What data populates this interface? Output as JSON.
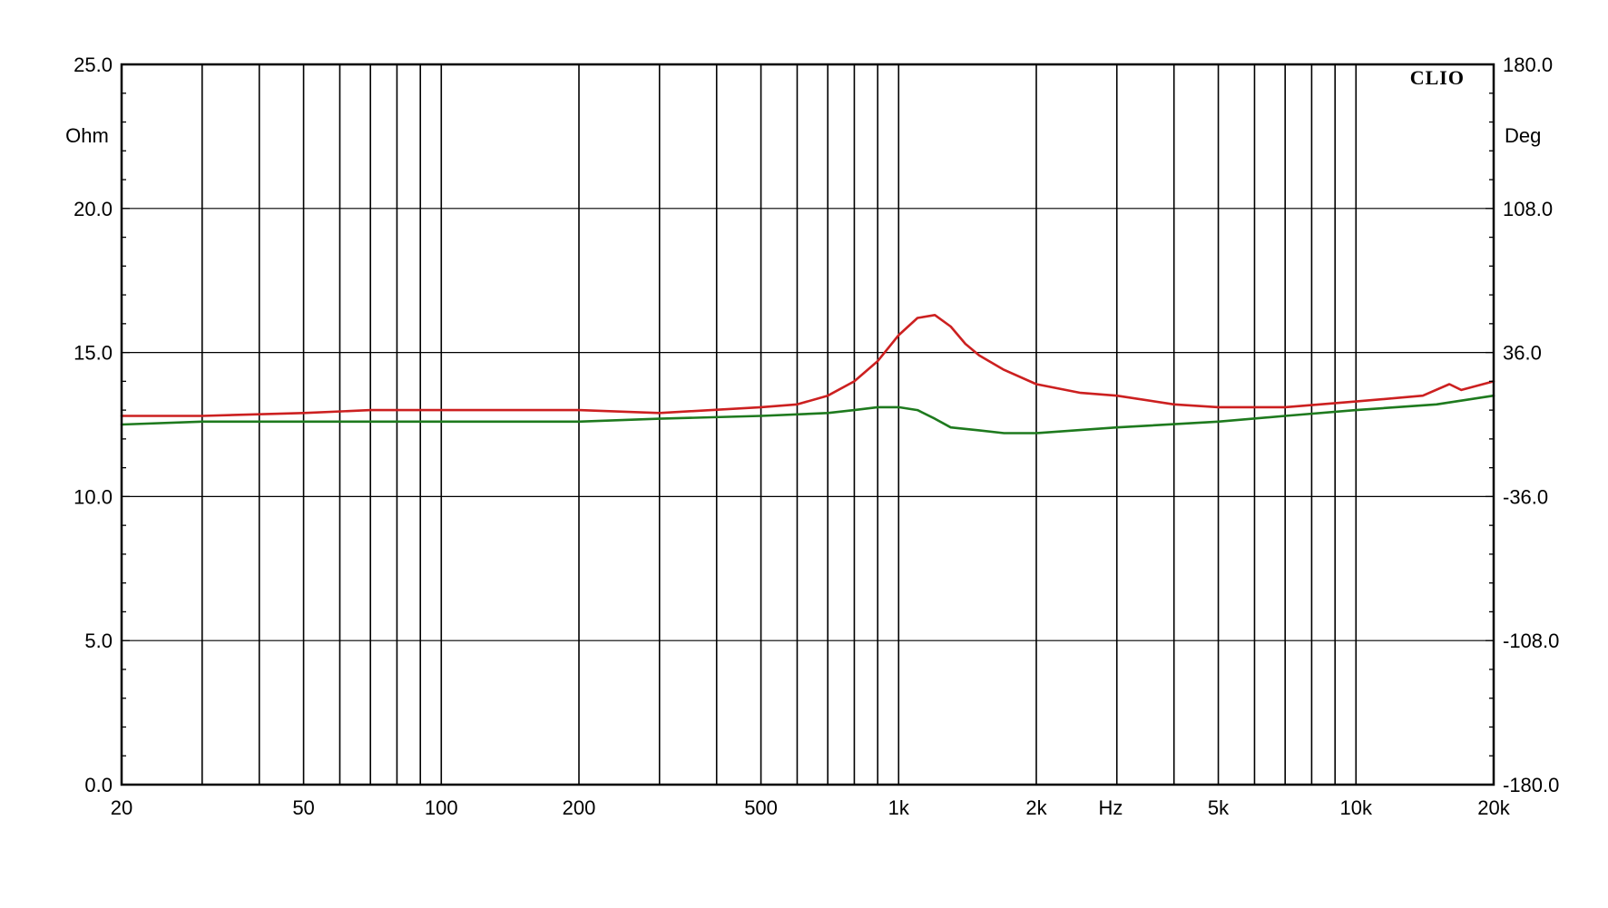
{
  "chart_data": {
    "type": "line",
    "brand": "CLIO",
    "x_scale": "log",
    "xlim": [
      20,
      20000
    ],
    "x_unit": "Hz",
    "x_tick_values": [
      20,
      50,
      100,
      200,
      500,
      1000,
      2000,
      5000,
      10000,
      20000
    ],
    "x_tick_labels": [
      "20",
      "50",
      "100",
      "200",
      "500",
      "1k",
      "2k",
      "5k",
      "10k",
      "20k"
    ],
    "x_grid_values": [
      20,
      30,
      40,
      50,
      60,
      70,
      80,
      90,
      100,
      200,
      300,
      400,
      500,
      600,
      700,
      800,
      900,
      1000,
      2000,
      3000,
      4000,
      5000,
      6000,
      7000,
      8000,
      9000,
      10000,
      20000
    ],
    "y_left": {
      "unit": "Ohm",
      "ylim": [
        0,
        25
      ],
      "ticks": [
        0,
        5,
        10,
        15,
        20,
        25
      ],
      "tick_labels": [
        "0.0",
        "5.0",
        "10.0",
        "15.0",
        "20.0",
        "25.0"
      ]
    },
    "y_right": {
      "unit": "Deg",
      "ylim": [
        -180,
        180
      ],
      "ticks": [
        -180,
        -108,
        -36,
        36,
        108,
        180
      ],
      "tick_labels": [
        "-180.0",
        "-108.0",
        "-36.0",
        "36.0",
        "108.0",
        "180.0"
      ]
    },
    "grid": true,
    "series": [
      {
        "color": "#cc2020",
        "axis": "left",
        "x": [
          20,
          30,
          50,
          70,
          100,
          200,
          300,
          500,
          600,
          700,
          800,
          900,
          1000,
          1100,
          1200,
          1300,
          1400,
          1500,
          1700,
          2000,
          2500,
          3000,
          4000,
          5000,
          7000,
          10000,
          14000,
          16000,
          17000,
          20000
        ],
        "y": [
          12.8,
          12.8,
          12.9,
          13.0,
          13.0,
          13.0,
          12.9,
          13.1,
          13.2,
          13.5,
          14.0,
          14.7,
          15.6,
          16.2,
          16.3,
          15.9,
          15.3,
          14.9,
          14.4,
          13.9,
          13.6,
          13.5,
          13.2,
          13.1,
          13.1,
          13.3,
          13.5,
          13.9,
          13.7,
          14.0
        ]
      },
      {
        "color": "#1e7a1e",
        "axis": "left",
        "x": [
          20,
          30,
          50,
          100,
          200,
          300,
          500,
          700,
          800,
          900,
          1000,
          1100,
          1200,
          1300,
          1500,
          1700,
          2000,
          3000,
          5000,
          7000,
          10000,
          15000,
          20000
        ],
        "y": [
          12.5,
          12.6,
          12.6,
          12.6,
          12.6,
          12.7,
          12.8,
          12.9,
          13.0,
          13.1,
          13.1,
          13.0,
          12.7,
          12.4,
          12.3,
          12.2,
          12.2,
          12.4,
          12.6,
          12.8,
          13.0,
          13.2,
          13.5
        ]
      }
    ]
  }
}
